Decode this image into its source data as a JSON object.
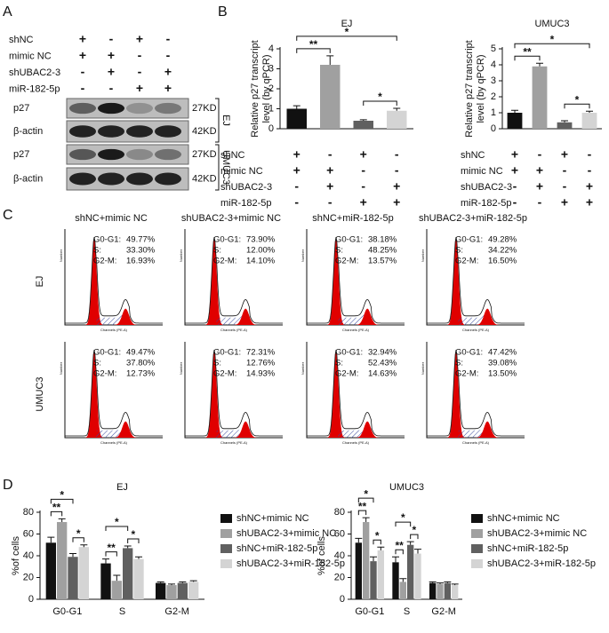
{
  "panel_labels": [
    "A",
    "B",
    "C",
    "D"
  ],
  "western_blot": {
    "conditions": [
      {
        "label": "shNC",
        "signs": [
          "+",
          "-",
          "+",
          "-"
        ]
      },
      {
        "label": "mimic NC",
        "signs": [
          "+",
          "+",
          "-",
          "-"
        ]
      },
      {
        "label": "shUBAC2-3",
        "signs": [
          "-",
          "+",
          "-",
          "+"
        ]
      },
      {
        "label": "miR-182-5p",
        "signs": [
          "-",
          "-",
          "+",
          "+"
        ]
      }
    ],
    "bands": [
      {
        "label": "p27",
        "size": "27KD"
      },
      {
        "label": "β-actin",
        "size": "42KD"
      },
      {
        "label": "p27",
        "size": "27KD"
      },
      {
        "label": "β-actin",
        "size": "42KD"
      }
    ],
    "cell_lines": [
      "EJ",
      "UMUC3"
    ]
  },
  "flow_cytometry": {
    "columns": [
      "shNC+mimic NC",
      "shUBAC2-3+mimic NC",
      "shNC+miR-182-5p",
      "shUBAC2-3+miR-182-5p"
    ],
    "x_axis_label": "Channels (PE-A)",
    "y_axis_label": "Number",
    "rows": [
      {
        "label": "EJ",
        "panels": [
          {
            "stats": [
              {
                "label": "G0-G1:",
                "value": "49.77%"
              },
              {
                "label": "S:",
                "value": "33.30%"
              },
              {
                "label": "G2-M:",
                "value": "16.93%"
              }
            ]
          },
          {
            "stats": [
              {
                "label": "G0-G1:",
                "value": "73.90%"
              },
              {
                "label": "S:",
                "value": "12.00%"
              },
              {
                "label": "G2-M:",
                "value": "14.10%"
              }
            ]
          },
          {
            "stats": [
              {
                "label": "G0-G1:",
                "value": "38.18%"
              },
              {
                "label": "S:",
                "value": "48.25%"
              },
              {
                "label": "G2-M:",
                "value": "13.57%"
              }
            ]
          },
          {
            "stats": [
              {
                "label": "G0-G1:",
                "value": "49.28%"
              },
              {
                "label": "S:",
                "value": "34.22%"
              },
              {
                "label": "G2-M:",
                "value": "16.50%"
              }
            ]
          }
        ]
      },
      {
        "label": "UMUC3",
        "panels": [
          {
            "stats": [
              {
                "label": "G0-G1:",
                "value": "49.47%"
              },
              {
                "label": "S:",
                "value": "37.80%"
              },
              {
                "label": "G2-M:",
                "value": "12.73%"
              }
            ]
          },
          {
            "stats": [
              {
                "label": "G0-G1:",
                "value": "72.31%"
              },
              {
                "label": "S:",
                "value": "12.76%"
              },
              {
                "label": "G2-M:",
                "value": "14.93%"
              }
            ]
          },
          {
            "stats": [
              {
                "label": "G0-G1:",
                "value": "32.94%"
              },
              {
                "label": "S:",
                "value": "52.43%"
              },
              {
                "label": "G2-M:",
                "value": "14.63%"
              }
            ]
          },
          {
            "stats": [
              {
                "label": "G0-G1:",
                "value": "47.42%"
              },
              {
                "label": "S:",
                "value": "39.08%"
              },
              {
                "label": "G2-M:",
                "value": "13.50%"
              }
            ]
          }
        ]
      }
    ]
  },
  "chart_data": [
    {
      "type": "bar",
      "title": "EJ",
      "y_label": [
        "Relative p27 transcript",
        "level (by qPCR)"
      ],
      "categories": [
        null,
        null,
        null,
        null
      ],
      "values": [
        1.0,
        3.2,
        0.4,
        0.9
      ],
      "errors": [
        0.15,
        0.45,
        0.05,
        0.12
      ],
      "colors": [
        "#111111",
        "#a0a0a0",
        "#606060",
        "#d4d4d4"
      ],
      "ylim": [
        0,
        4
      ],
      "yticks": [
        0,
        1,
        2,
        3,
        4
      ],
      "comparisons": [
        {
          "label": "**",
          "bars": [
            0,
            1
          ]
        },
        {
          "label": "*",
          "bars": [
            2,
            3
          ]
        },
        {
          "label": "*",
          "bars": [
            0,
            3
          ]
        }
      ],
      "conditions": [
        {
          "label": "shNC",
          "signs": [
            "+",
            "-",
            "+",
            "-"
          ]
        },
        {
          "label": "mimic NC",
          "signs": [
            "+",
            "+",
            "-",
            "-"
          ]
        },
        {
          "label": "shUBAC2-3",
          "signs": [
            "-",
            "+",
            "-",
            "+"
          ]
        },
        {
          "label": "miR-182-5p",
          "signs": [
            "-",
            "-",
            "+",
            "+"
          ]
        }
      ]
    },
    {
      "type": "bar",
      "title": "UMUC3",
      "y_label": [
        "Relative p27 transcript",
        "level (by qPCR)"
      ],
      "categories": [
        null,
        null,
        null,
        null
      ],
      "values": [
        1.0,
        3.9,
        0.4,
        1.0
      ],
      "errors": [
        0.15,
        0.2,
        0.1,
        0.1
      ],
      "colors": [
        "#111111",
        "#a0a0a0",
        "#606060",
        "#d4d4d4"
      ],
      "ylim": [
        0,
        5
      ],
      "yticks": [
        0,
        1,
        2,
        3,
        4,
        5
      ],
      "comparisons": [
        {
          "label": "**",
          "bars": [
            0,
            1
          ]
        },
        {
          "label": "*",
          "bars": [
            2,
            3
          ]
        },
        {
          "label": "*",
          "bars": [
            0,
            3
          ]
        }
      ],
      "conditions": [
        {
          "label": "shNC",
          "signs": [
            "+",
            "-",
            "+",
            "-"
          ]
        },
        {
          "label": "mimic NC",
          "signs": [
            "+",
            "+",
            "-",
            "-"
          ]
        },
        {
          "label": "shUBAC2-3",
          "signs": [
            "-",
            "+",
            "-",
            "+"
          ]
        },
        {
          "label": "miR-182-5p",
          "signs": [
            "-",
            "-",
            "+",
            "+"
          ]
        }
      ]
    },
    {
      "type": "grouped_bar",
      "title": "EJ",
      "y_label": "%of cells",
      "categories": [
        "G0-G1",
        "S",
        "G2-M"
      ],
      "ylim": [
        0,
        80
      ],
      "yticks": [
        0,
        20,
        40,
        60,
        80
      ],
      "series": [
        {
          "name": "shNC+mimic NC",
          "color": "#111111",
          "values": [
            52,
            33,
            15
          ],
          "errors": [
            5,
            4,
            1
          ]
        },
        {
          "name": "shUBAC2-3+mimic NC",
          "color": "#a0a0a0",
          "values": [
            71,
            17,
            13
          ],
          "errors": [
            3,
            5,
            1
          ]
        },
        {
          "name": "shNC+miR-182-5p",
          "color": "#606060",
          "values": [
            39,
            47,
            15
          ],
          "errors": [
            3,
            2,
            1
          ]
        },
        {
          "name": "shUBAC2-3+miR-182-5p",
          "color": "#d4d4d4",
          "values": [
            48,
            37,
            16
          ],
          "errors": [
            2,
            2,
            1
          ]
        }
      ],
      "comparisons": [
        {
          "label": "**",
          "category": 0,
          "series": [
            0,
            1
          ]
        },
        {
          "label": "*",
          "category": 0,
          "series": [
            2,
            3
          ]
        },
        {
          "label": "*",
          "category": 0,
          "series": [
            0,
            2
          ]
        },
        {
          "label": "**",
          "category": 1,
          "series": [
            0,
            1
          ]
        },
        {
          "label": "*",
          "category": 1,
          "series": [
            2,
            3
          ]
        },
        {
          "label": "*",
          "category": 1,
          "series": [
            0,
            2
          ]
        }
      ]
    },
    {
      "type": "grouped_bar",
      "title": "UMUC3",
      "y_label": "%of cells",
      "categories": [
        "G0-G1",
        "S",
        "G2-M"
      ],
      "ylim": [
        0,
        80
      ],
      "yticks": [
        0,
        20,
        40,
        60,
        80
      ],
      "series": [
        {
          "name": "shNC+mimic NC",
          "color": "#111111",
          "values": [
            52,
            34,
            15
          ],
          "errors": [
            4,
            5,
            1
          ]
        },
        {
          "name": "shUBAC2-3+mimic NC",
          "color": "#a0a0a0",
          "values": [
            71,
            16,
            14
          ],
          "errors": [
            4,
            3,
            1
          ]
        },
        {
          "name": "shNC+miR-182-5p",
          "color": "#606060",
          "values": [
            35,
            50,
            15
          ],
          "errors": [
            4,
            3,
            1
          ]
        },
        {
          "name": "shUBAC2-3+miR-182-5p",
          "color": "#d4d4d4",
          "values": [
            45,
            42,
            13
          ],
          "errors": [
            3,
            4,
            1
          ]
        }
      ],
      "comparisons": [
        {
          "label": "**",
          "category": 0,
          "series": [
            0,
            1
          ]
        },
        {
          "label": "*",
          "category": 0,
          "series": [
            2,
            3
          ]
        },
        {
          "label": "*",
          "category": 0,
          "series": [
            0,
            2
          ]
        },
        {
          "label": "**",
          "category": 1,
          "series": [
            0,
            1
          ]
        },
        {
          "label": "*",
          "category": 1,
          "series": [
            2,
            3
          ]
        },
        {
          "label": "*",
          "category": 1,
          "series": [
            0,
            2
          ]
        }
      ]
    }
  ]
}
